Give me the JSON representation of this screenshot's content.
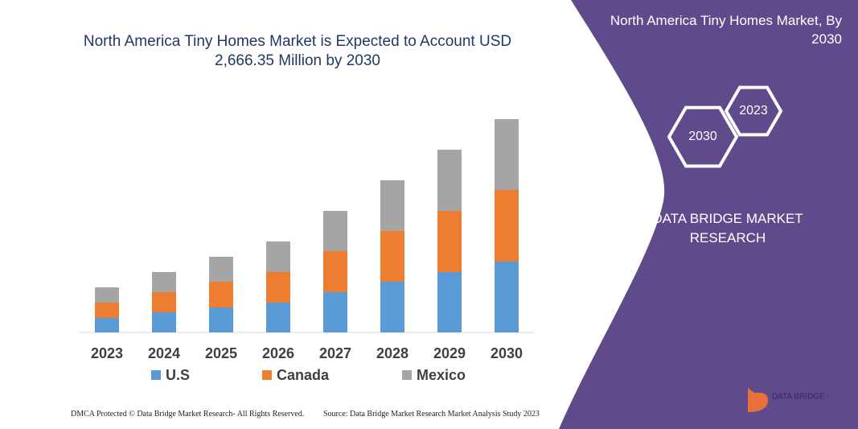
{
  "chart_data": {
    "type": "bar",
    "stacked": true,
    "title": "North America Tiny Homes Market is Expected to Account USD 2,666.35 Million by 2030",
    "categories": [
      "2023",
      "2024",
      "2025",
      "2026",
      "2027",
      "2028",
      "2029",
      "2030"
    ],
    "series": [
      {
        "name": "U.S",
        "color": "#5b9bd5",
        "values": [
          18,
          25,
          31,
          37,
          50,
          63,
          75,
          88
        ]
      },
      {
        "name": "Canada",
        "color": "#ed7d31",
        "values": [
          19,
          25,
          32,
          38,
          51,
          63,
          76,
          89
        ]
      },
      {
        "name": "Mexico",
        "color": "#a5a5a5",
        "values": [
          19,
          25,
          31,
          38,
          50,
          63,
          76,
          88
        ]
      }
    ]
  },
  "panel": {
    "title": "North America Tiny Homes Market, By 2030",
    "hexagons": [
      "2023",
      "2030"
    ],
    "brand": "DATA BRIDGE MARKET RESEARCH",
    "logo": "DATA BRIDGE"
  },
  "footer": {
    "left": "DMCA Protected © Data Bridge Market Research- All Rights Reserved.",
    "right": "Source: Data Bridge Market Research Market Analysis Study 2023"
  }
}
